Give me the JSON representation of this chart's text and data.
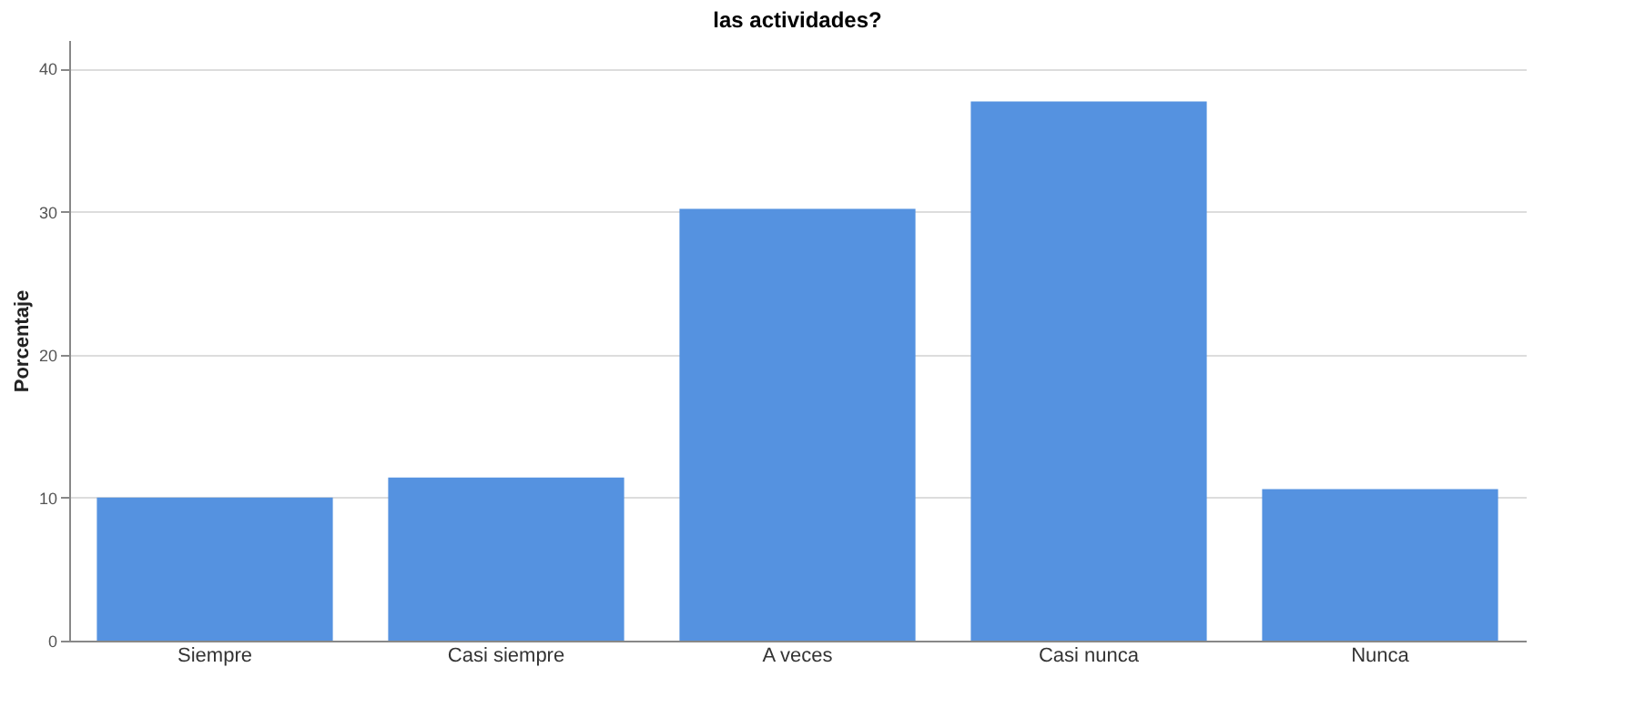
{
  "chart_data": {
    "type": "bar",
    "title": "las actividades?",
    "ylabel": "Porcentaje",
    "categories": [
      "Siempre",
      "Casi siempre",
      "A veces",
      "Casi nunca",
      "Nunca"
    ],
    "values": [
      10.0,
      11.4,
      30.2,
      37.7,
      10.6
    ],
    "color": "#5592e0",
    "ylim": [
      0,
      42
    ],
    "yticks": [
      0,
      10,
      20,
      30,
      40
    ],
    "grid": "y"
  }
}
